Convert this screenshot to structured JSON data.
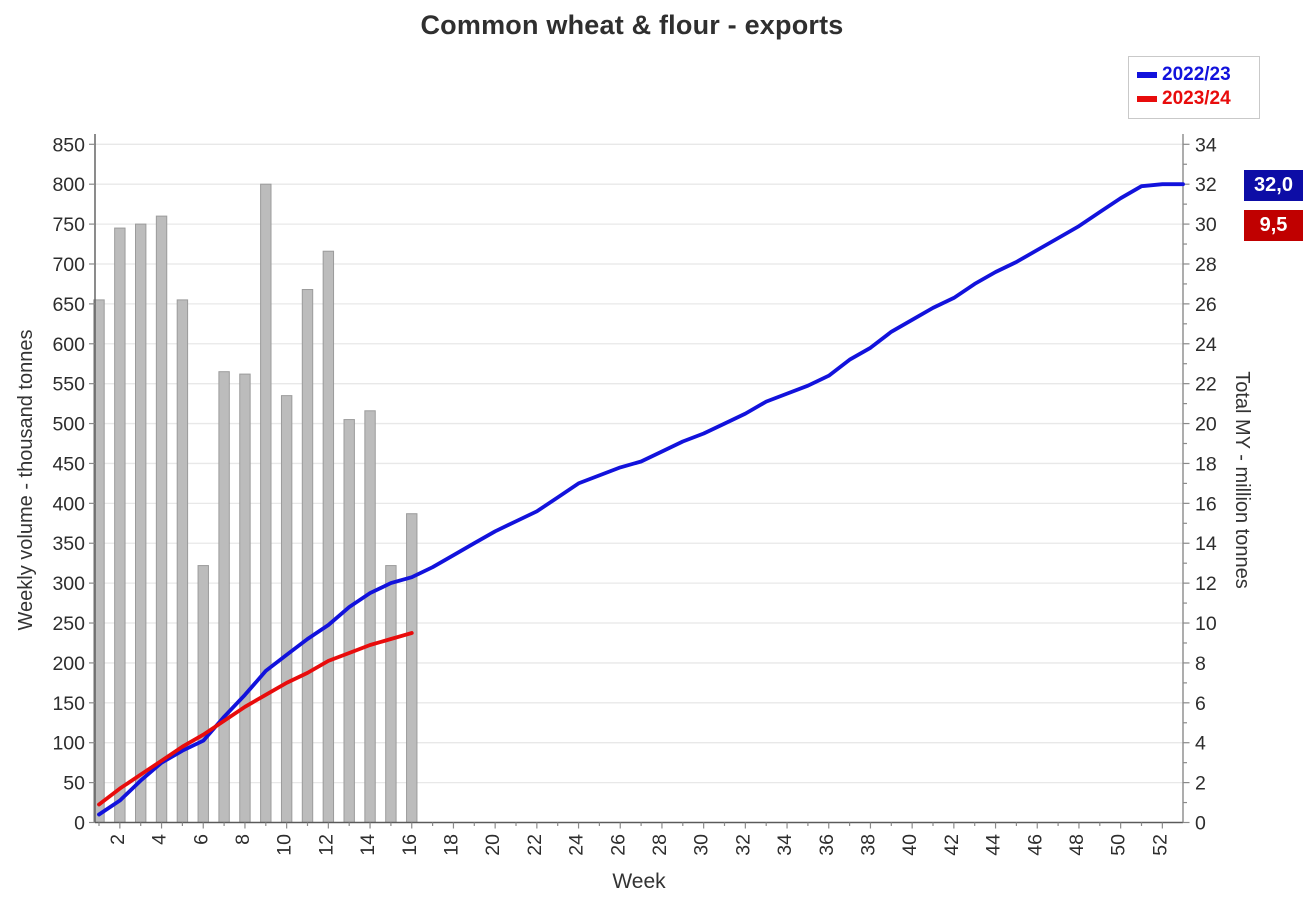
{
  "title": "Common wheat & flour - exports",
  "legend": {
    "items": [
      {
        "label": "2022/23",
        "color": "#1212dc"
      },
      {
        "label": "2023/24",
        "color": "#e80c0c"
      }
    ]
  },
  "end_labels": [
    {
      "text": "32,0",
      "bg": "#0d0da6",
      "series": "2022/23"
    },
    {
      "text": "9,5",
      "bg": "#c00000",
      "series": "2023/24"
    }
  ],
  "chart_data": {
    "type": "combo bar+line",
    "title": "Common wheat & flour - exports",
    "x_axis": {
      "label": "Week",
      "weeks": 52,
      "tick_label_step": 2
    },
    "left_axis": {
      "label": "Weekly volume - thousand tonnes",
      "min": 0,
      "max": 850,
      "step": 50,
      "applies_to": "bars"
    },
    "right_axis": {
      "label": "Total MY - million tonnes",
      "min": 0,
      "max": 34,
      "step": 2,
      "minor_step": 1,
      "applies_to": "lines"
    },
    "grid": "horizontal-only",
    "legend_position": "top-right",
    "bars": {
      "name": "Weekly volume",
      "color": "#bcbcbc",
      "border_color": "#9b9b9b",
      "weeks": [
        1,
        2,
        3,
        4,
        5,
        6,
        7,
        8,
        9,
        10,
        11,
        12,
        13,
        14,
        15,
        16
      ],
      "values": [
        655,
        745,
        750,
        760,
        655,
        322,
        565,
        562,
        800,
        535,
        668,
        716,
        505,
        516,
        322,
        387
      ]
    },
    "series": [
      {
        "name": "2022/23",
        "color": "#1212dc",
        "axis": "right",
        "end_label": "32,0",
        "values": [
          0.4,
          1.1,
          2.1,
          3.0,
          3.6,
          4.1,
          5.3,
          6.4,
          7.6,
          8.4,
          9.2,
          9.9,
          10.8,
          11.5,
          12.0,
          12.3,
          12.8,
          13.4,
          14.0,
          14.6,
          15.1,
          15.6,
          16.3,
          17.0,
          17.4,
          17.8,
          18.1,
          18.6,
          19.1,
          19.5,
          20.0,
          20.5,
          21.1,
          21.5,
          21.9,
          22.4,
          23.2,
          23.8,
          24.6,
          25.2,
          25.8,
          26.3,
          27.0,
          27.6,
          28.1,
          28.7,
          29.3,
          29.9,
          30.6,
          31.3,
          31.9,
          32.0
        ],
        "extend_to_axis": true
      },
      {
        "name": "2023/24",
        "color": "#e80c0c",
        "axis": "right",
        "end_label": "9,5",
        "values": [
          0.9,
          1.7,
          2.4,
          3.1,
          3.8,
          4.4,
          5.1,
          5.8,
          6.4,
          7.0,
          7.5,
          8.1,
          8.5,
          8.9,
          9.2,
          9.5
        ],
        "extend_to_axis": false
      }
    ]
  }
}
